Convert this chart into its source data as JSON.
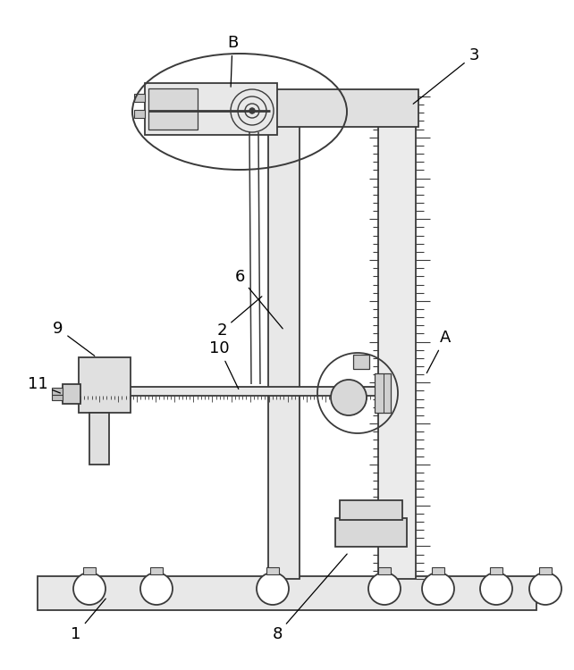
{
  "bg_color": "white",
  "line_color": "#3a3a3a",
  "figsize": [
    6.42,
    7.5
  ],
  "dpi": 100,
  "xlim": [
    0,
    642
  ],
  "ylim": [
    0,
    750
  ]
}
